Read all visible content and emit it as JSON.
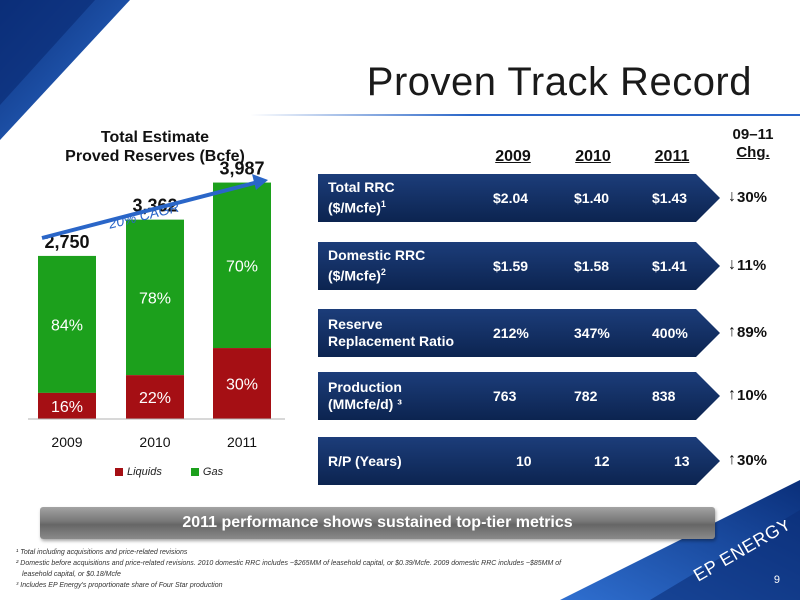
{
  "slide": {
    "title": "Proven Track Record",
    "page_number": "9",
    "banner": "2011 performance shows sustained top-tier metrics",
    "logo_text": "EP ENERGY"
  },
  "chart": {
    "title_line1": "Total Estimate",
    "title_line2": "Proved Reserves (Bcfe)",
    "cagr_label": "20% CAGR",
    "legend": [
      "Liquids",
      "Gas"
    ]
  },
  "chart_data": {
    "type": "bar",
    "stacked": true,
    "categories": [
      "2009",
      "2010",
      "2011"
    ],
    "totals": [
      2750,
      3362,
      3987
    ],
    "total_labels": [
      "2,750",
      "3,362",
      "3,987"
    ],
    "series": [
      {
        "name": "Liquids",
        "color": "#a50f14",
        "share_pct": [
          16,
          22,
          30
        ],
        "labels": [
          "16%",
          "22%",
          "30%"
        ]
      },
      {
        "name": "Gas",
        "color": "#1ca01c",
        "share_pct": [
          84,
          78,
          70
        ],
        "labels": [
          "84%",
          "78%",
          "70%"
        ]
      }
    ],
    "title": "Total Estimate Proved Reserves (Bcfe)",
    "ylim": [
      0,
      4300
    ]
  },
  "table": {
    "years": [
      "2009",
      "2010",
      "2011"
    ],
    "change_header_line1": "09–11",
    "change_header_line2": "Chg.",
    "rows": [
      {
        "label_line1": "Total RRC",
        "label_line2": "($/Mcfe)",
        "sup": "1",
        "values": [
          "$2.04",
          "$1.40",
          "$1.43"
        ],
        "change": "30%",
        "direction": "down"
      },
      {
        "label_line1": "Domestic RRC",
        "label_line2": "($/Mcfe)",
        "sup": "2",
        "values": [
          "$1.59",
          "$1.58",
          "$1.41"
        ],
        "change": "11%",
        "direction": "down"
      },
      {
        "label_line1": "Reserve",
        "label_line2": "Replacement Ratio",
        "sup": "",
        "values": [
          "212%",
          "347%",
          "400%"
        ],
        "change": "89%",
        "direction": "up"
      },
      {
        "label_line1": "Production",
        "label_line2": "(MMcfe/d) ³",
        "sup": "",
        "values": [
          "763",
          "782",
          "838"
        ],
        "change": "10%",
        "direction": "up"
      },
      {
        "label_line1": "R/P (Years)",
        "label_line2": "",
        "sup": "",
        "values": [
          "10",
          "12",
          "13"
        ],
        "change": "30%",
        "direction": "up"
      }
    ]
  },
  "footnotes": [
    "¹ Total including acquisitions and price-related revisions",
    "² Domestic before acquisitions and price-related revisions. 2010 domestic RRC includes ~$265MM of leasehold capital, or $0.39/Mcfe. 2009 domestic RRC includes ~$85MM of",
    "leasehold capital, or $0.18/Mcfe",
    "³ Includes EP Energy's proportionate share of Four Star production"
  ],
  "colors": {
    "navy": "#0e2a5a",
    "accent_blue": "#2a66c8",
    "liquids": "#a50f14",
    "gas": "#1ca01c",
    "banner": "#7a7a7a"
  }
}
